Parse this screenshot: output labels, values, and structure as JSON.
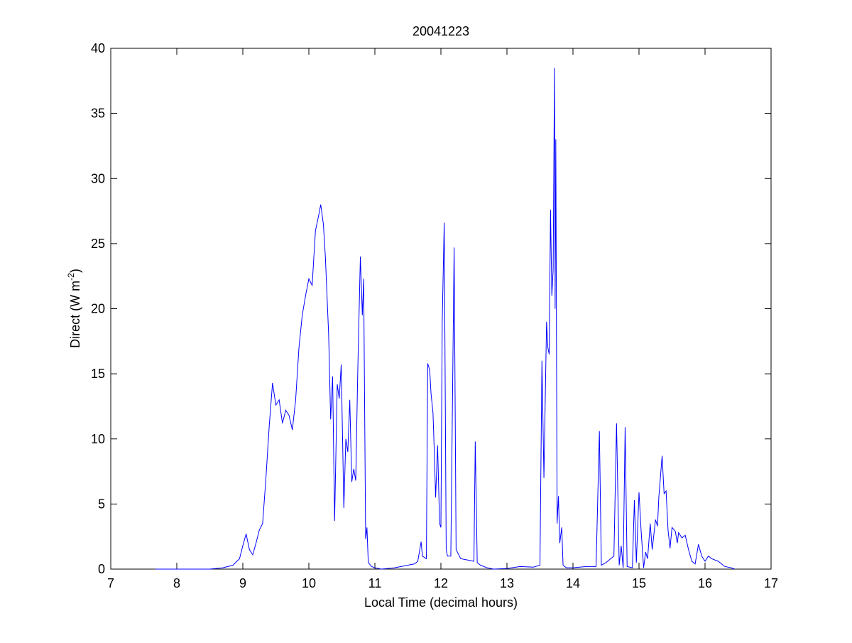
{
  "chart_data": {
    "type": "line",
    "title": "20041223",
    "xlabel": "Local Time (decimal hours)",
    "ylabel": {
      "text": "Direct (W m",
      "superscript": "-2",
      "suffix": ")"
    },
    "x": [
      7.68,
      8.0,
      8.5,
      8.7,
      8.85,
      8.95,
      9.0,
      9.05,
      9.1,
      9.15,
      9.2,
      9.25,
      9.3,
      9.35,
      9.4,
      9.45,
      9.5,
      9.55,
      9.6,
      9.65,
      9.7,
      9.75,
      9.8,
      9.85,
      9.9,
      9.95,
      10.0,
      10.05,
      10.1,
      10.15,
      10.18,
      10.22,
      10.25,
      10.3,
      10.33,
      10.36,
      10.39,
      10.43,
      10.46,
      10.49,
      10.53,
      10.56,
      10.59,
      10.62,
      10.65,
      10.68,
      10.71,
      10.74,
      10.78,
      10.81,
      10.83,
      10.86,
      10.88,
      10.9,
      10.95,
      11.0,
      11.1,
      11.3,
      11.5,
      11.6,
      11.65,
      11.7,
      11.72,
      11.78,
      11.8,
      11.83,
      11.85,
      11.88,
      11.9,
      11.92,
      11.95,
      11.98,
      12.0,
      12.02,
      12.05,
      12.08,
      12.1,
      12.15,
      12.2,
      12.23,
      12.3,
      12.4,
      12.5,
      12.52,
      12.55,
      12.6,
      12.7,
      12.8,
      13.0,
      13.2,
      13.4,
      13.5,
      13.53,
      13.56,
      13.58,
      13.6,
      13.62,
      13.64,
      13.66,
      13.68,
      13.7,
      13.72,
      13.73,
      13.74,
      13.76,
      13.78,
      13.8,
      13.83,
      13.85,
      13.9,
      14.0,
      14.2,
      14.35,
      14.4,
      14.43,
      14.5,
      14.62,
      14.66,
      14.7,
      14.73,
      14.76,
      14.79,
      14.82,
      14.9,
      14.93,
      14.96,
      15.0,
      15.03,
      15.07,
      15.1,
      15.13,
      15.17,
      15.2,
      15.25,
      15.28,
      15.3,
      15.35,
      15.38,
      15.41,
      15.44,
      15.47,
      15.5,
      15.55,
      15.58,
      15.6,
      15.65,
      15.7,
      15.75,
      15.8,
      15.85,
      15.9,
      15.95,
      16.0,
      16.05,
      16.1,
      16.2,
      16.3,
      16.4,
      16.45
    ],
    "series": [
      {
        "color": "#0000ff",
        "values": [
          0,
          0,
          0,
          0.1,
          0.3,
          0.8,
          1.8,
          2.7,
          1.5,
          1.1,
          2.0,
          3.0,
          3.5,
          7,
          11,
          14.3,
          12.6,
          13.0,
          11.2,
          12.2,
          11.8,
          10.7,
          13,
          17,
          19.5,
          21,
          22.3,
          21.8,
          26,
          27.2,
          28.0,
          26.5,
          24,
          18,
          11.5,
          14.8,
          3.7,
          14.2,
          13.1,
          15.7,
          4.7,
          10,
          9.0,
          13,
          6.7,
          7.7,
          6.8,
          15,
          24,
          19.5,
          22.3,
          2.3,
          3.2,
          0.5,
          0.2,
          0.1,
          0,
          0.1,
          0.3,
          0.4,
          0.6,
          2.1,
          1.0,
          0.8,
          15.8,
          15.3,
          13.5,
          12,
          9,
          5.5,
          9.5,
          3.5,
          3.2,
          19,
          26.6,
          1.5,
          1.0,
          1.0,
          24.7,
          1.5,
          0.8,
          0.7,
          0.6,
          9.8,
          0.5,
          0.3,
          0.1,
          0,
          0.05,
          0.2,
          0.15,
          0.3,
          16.0,
          7,
          13,
          19,
          17,
          16.5,
          27.6,
          21,
          23,
          38.5,
          20,
          33,
          3.5,
          5.6,
          2,
          3.2,
          0.3,
          0.1,
          0.1,
          0.2,
          0.2,
          10.6,
          0.3,
          0.5,
          1.0,
          11.2,
          0.3,
          1.8,
          0.1,
          10.9,
          0.2,
          0.1,
          5.3,
          0.5,
          5.9,
          3.1,
          0.1,
          1.3,
          0.8,
          3.5,
          1.5,
          3.8,
          3.3,
          5.5,
          8.7,
          5.8,
          6.0,
          3.0,
          1.6,
          3.2,
          2.9,
          2.0,
          2.8,
          2.4,
          2.6,
          1.5,
          0.6,
          0.4,
          1.9,
          1.0,
          0.6,
          1.0,
          0.8,
          0.6,
          0.2,
          0.1,
          0
        ]
      }
    ],
    "xlim": [
      7,
      17
    ],
    "xticks": [
      7,
      8,
      9,
      10,
      11,
      12,
      13,
      14,
      15,
      16,
      17
    ],
    "ylim": [
      0,
      40
    ],
    "yticks": [
      0,
      5,
      10,
      15,
      20,
      25,
      30,
      35,
      40
    ]
  }
}
